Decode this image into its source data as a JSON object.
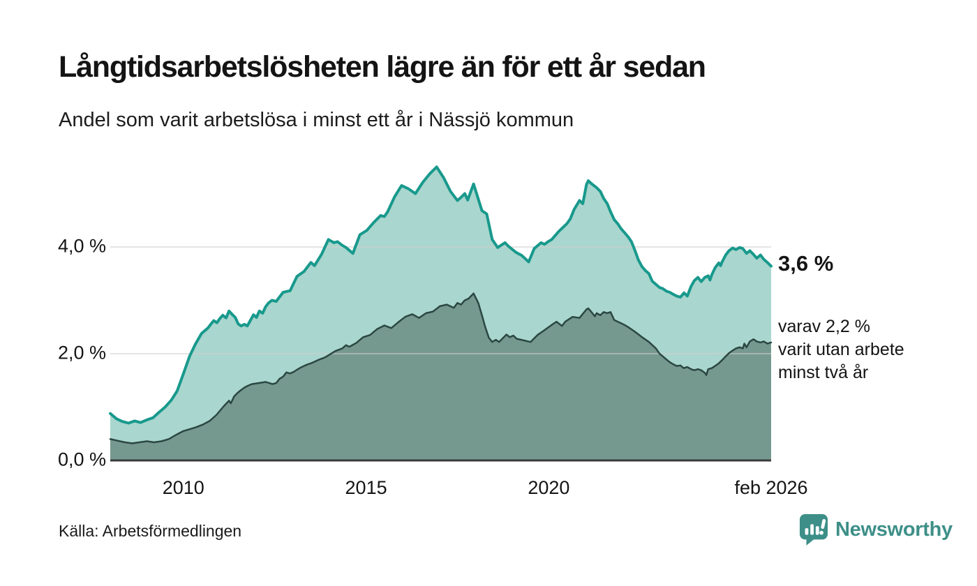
{
  "header": {
    "title": "Långtidsarbetslösheten lägre än för ett år sedan",
    "subtitle": "Andel som varit arbetslösa i minst ett år i Nässjö kommun"
  },
  "annotations": {
    "latest_total": "3,6 %",
    "latest_two_year_lines": [
      "varav 2,2 %",
      "varit utan arbete",
      "minst två år"
    ]
  },
  "footer": {
    "source": "Källa: Arbetsförmedlingen",
    "brand": "Newsworthy"
  },
  "colors": {
    "series1_line": "#18998c",
    "series1_fill": "#a9d6ce",
    "series2_line": "#2b4742",
    "series2_fill": "#76998f",
    "gridline": "#cfcfcf",
    "baseline": "#3a3a3a",
    "brand_teal": "#3d8f88"
  },
  "chart_data": {
    "type": "area",
    "title": "Långtidsarbetslösheten lägre än för ett år sedan",
    "subtitle": "Andel som varit arbetslösa i minst ett år i Nässjö kommun",
    "unit": "%",
    "grid": "horizontal",
    "x_range": [
      2008.0,
      2026.083
    ],
    "ylim": [
      0,
      5.9
    ],
    "x_ticks": [
      {
        "value": 2010,
        "label": "2010"
      },
      {
        "value": 2015,
        "label": "2015"
      },
      {
        "value": 2020,
        "label": "2020"
      },
      {
        "value": 2026.083,
        "label": "feb 2026"
      }
    ],
    "y_ticks": [
      {
        "value": 0,
        "label": "0,0 %"
      },
      {
        "value": 2,
        "label": "2,0 %"
      },
      {
        "value": 4,
        "label": "4,0 %"
      }
    ],
    "series": [
      {
        "name": "Andel arbetslösa minst ett år",
        "latest_label": "3,6 %",
        "latest_value": 3.6,
        "points": [
          [
            2008.0,
            0.88
          ],
          [
            2008.17,
            0.78
          ],
          [
            2008.33,
            0.73
          ],
          [
            2008.5,
            0.7
          ],
          [
            2008.67,
            0.74
          ],
          [
            2008.83,
            0.71
          ],
          [
            2009.0,
            0.76
          ],
          [
            2009.17,
            0.8
          ],
          [
            2009.33,
            0.9
          ],
          [
            2009.5,
            1.0
          ],
          [
            2009.67,
            1.13
          ],
          [
            2009.83,
            1.3
          ],
          [
            2010.0,
            1.62
          ],
          [
            2010.17,
            1.95
          ],
          [
            2010.33,
            2.18
          ],
          [
            2010.5,
            2.38
          ],
          [
            2010.67,
            2.48
          ],
          [
            2010.75,
            2.55
          ],
          [
            2010.83,
            2.62
          ],
          [
            2010.92,
            2.58
          ],
          [
            2011.0,
            2.66
          ],
          [
            2011.08,
            2.72
          ],
          [
            2011.17,
            2.67
          ],
          [
            2011.25,
            2.8
          ],
          [
            2011.33,
            2.74
          ],
          [
            2011.42,
            2.68
          ],
          [
            2011.5,
            2.56
          ],
          [
            2011.58,
            2.52
          ],
          [
            2011.67,
            2.55
          ],
          [
            2011.75,
            2.52
          ],
          [
            2011.83,
            2.62
          ],
          [
            2011.92,
            2.73
          ],
          [
            2012.0,
            2.68
          ],
          [
            2012.08,
            2.8
          ],
          [
            2012.17,
            2.76
          ],
          [
            2012.25,
            2.88
          ],
          [
            2012.33,
            2.95
          ],
          [
            2012.42,
            3.0
          ],
          [
            2012.54,
            2.98
          ],
          [
            2012.73,
            3.15
          ],
          [
            2012.92,
            3.18
          ],
          [
            2013.11,
            3.45
          ],
          [
            2013.3,
            3.54
          ],
          [
            2013.49,
            3.71
          ],
          [
            2013.59,
            3.65
          ],
          [
            2013.78,
            3.86
          ],
          [
            2013.97,
            4.14
          ],
          [
            2014.12,
            4.08
          ],
          [
            2014.22,
            4.1
          ],
          [
            2014.35,
            4.03
          ],
          [
            2014.45,
            3.99
          ],
          [
            2014.64,
            3.88
          ],
          [
            2014.83,
            4.23
          ],
          [
            2015.02,
            4.31
          ],
          [
            2015.21,
            4.46
          ],
          [
            2015.4,
            4.59
          ],
          [
            2015.5,
            4.57
          ],
          [
            2015.59,
            4.66
          ],
          [
            2015.78,
            4.94
          ],
          [
            2015.97,
            5.15
          ],
          [
            2016.16,
            5.09
          ],
          [
            2016.35,
            5.0
          ],
          [
            2016.55,
            5.21
          ],
          [
            2016.74,
            5.37
          ],
          [
            2016.93,
            5.5
          ],
          [
            2017.12,
            5.3
          ],
          [
            2017.31,
            5.04
          ],
          [
            2017.5,
            4.87
          ],
          [
            2017.6,
            4.93
          ],
          [
            2017.7,
            5.0
          ],
          [
            2017.78,
            4.88
          ],
          [
            2017.94,
            5.18
          ],
          [
            2018.17,
            4.68
          ],
          [
            2018.3,
            4.62
          ],
          [
            2018.45,
            4.14
          ],
          [
            2018.6,
            3.99
          ],
          [
            2018.8,
            4.08
          ],
          [
            2018.9,
            4.01
          ],
          [
            2019.1,
            3.9
          ],
          [
            2019.26,
            3.84
          ],
          [
            2019.45,
            3.72
          ],
          [
            2019.6,
            3.97
          ],
          [
            2019.79,
            4.08
          ],
          [
            2019.88,
            4.05
          ],
          [
            2019.98,
            4.1
          ],
          [
            2020.08,
            4.14
          ],
          [
            2020.27,
            4.29
          ],
          [
            2020.5,
            4.44
          ],
          [
            2020.59,
            4.53
          ],
          [
            2020.69,
            4.7
          ],
          [
            2020.84,
            4.87
          ],
          [
            2020.93,
            4.81
          ],
          [
            2021.03,
            5.17
          ],
          [
            2021.08,
            5.24
          ],
          [
            2021.16,
            5.19
          ],
          [
            2021.31,
            5.11
          ],
          [
            2021.41,
            5.04
          ],
          [
            2021.5,
            4.91
          ],
          [
            2021.6,
            4.81
          ],
          [
            2021.69,
            4.66
          ],
          [
            2021.79,
            4.51
          ],
          [
            2021.88,
            4.44
          ],
          [
            2021.98,
            4.34
          ],
          [
            2022.07,
            4.27
          ],
          [
            2022.17,
            4.19
          ],
          [
            2022.26,
            4.1
          ],
          [
            2022.36,
            3.93
          ],
          [
            2022.45,
            3.76
          ],
          [
            2022.55,
            3.63
          ],
          [
            2022.64,
            3.56
          ],
          [
            2022.74,
            3.5
          ],
          [
            2022.83,
            3.36
          ],
          [
            2022.93,
            3.3
          ],
          [
            2023.03,
            3.24
          ],
          [
            2023.12,
            3.22
          ],
          [
            2023.22,
            3.17
          ],
          [
            2023.31,
            3.15
          ],
          [
            2023.41,
            3.11
          ],
          [
            2023.5,
            3.08
          ],
          [
            2023.6,
            3.06
          ],
          [
            2023.7,
            3.14
          ],
          [
            2023.79,
            3.08
          ],
          [
            2023.89,
            3.26
          ],
          [
            2023.98,
            3.37
          ],
          [
            2024.08,
            3.43
          ],
          [
            2024.17,
            3.35
          ],
          [
            2024.27,
            3.43
          ],
          [
            2024.36,
            3.46
          ],
          [
            2024.41,
            3.38
          ],
          [
            2024.46,
            3.48
          ],
          [
            2024.55,
            3.61
          ],
          [
            2024.65,
            3.7
          ],
          [
            2024.7,
            3.65
          ],
          [
            2024.74,
            3.72
          ],
          [
            2024.84,
            3.85
          ],
          [
            2024.93,
            3.93
          ],
          [
            2025.03,
            3.98
          ],
          [
            2025.12,
            3.95
          ],
          [
            2025.22,
            3.99
          ],
          [
            2025.31,
            3.97
          ],
          [
            2025.41,
            3.88
          ],
          [
            2025.5,
            3.93
          ],
          [
            2025.6,
            3.86
          ],
          [
            2025.69,
            3.79
          ],
          [
            2025.79,
            3.85
          ],
          [
            2025.88,
            3.77
          ],
          [
            2025.98,
            3.71
          ],
          [
            2026.083,
            3.64
          ]
        ]
      },
      {
        "name": "varav utan arbete minst två år",
        "latest_label": "varav 2,2 % varit utan arbete minst två år",
        "latest_value": 2.2,
        "points": [
          [
            2008.0,
            0.4
          ],
          [
            2008.2,
            0.37
          ],
          [
            2008.4,
            0.34
          ],
          [
            2008.6,
            0.32
          ],
          [
            2008.8,
            0.34
          ],
          [
            2009.0,
            0.36
          ],
          [
            2009.2,
            0.34
          ],
          [
            2009.4,
            0.36
          ],
          [
            2009.6,
            0.4
          ],
          [
            2009.8,
            0.48
          ],
          [
            2010.0,
            0.55
          ],
          [
            2010.15,
            0.58
          ],
          [
            2010.34,
            0.62
          ],
          [
            2010.53,
            0.67
          ],
          [
            2010.72,
            0.74
          ],
          [
            2010.9,
            0.85
          ],
          [
            2011.11,
            1.02
          ],
          [
            2011.25,
            1.12
          ],
          [
            2011.3,
            1.07
          ],
          [
            2011.39,
            1.2
          ],
          [
            2011.49,
            1.27
          ],
          [
            2011.58,
            1.32
          ],
          [
            2011.68,
            1.37
          ],
          [
            2011.77,
            1.4
          ],
          [
            2011.87,
            1.43
          ],
          [
            2012.06,
            1.45
          ],
          [
            2012.25,
            1.47
          ],
          [
            2012.35,
            1.45
          ],
          [
            2012.44,
            1.43
          ],
          [
            2012.54,
            1.45
          ],
          [
            2012.63,
            1.53
          ],
          [
            2012.73,
            1.57
          ],
          [
            2012.82,
            1.65
          ],
          [
            2012.92,
            1.63
          ],
          [
            2013.02,
            1.66
          ],
          [
            2013.11,
            1.7
          ],
          [
            2013.21,
            1.74
          ],
          [
            2013.3,
            1.77
          ],
          [
            2013.4,
            1.8
          ],
          [
            2013.49,
            1.82
          ],
          [
            2013.59,
            1.85
          ],
          [
            2013.68,
            1.88
          ],
          [
            2013.87,
            1.93
          ],
          [
            2013.97,
            1.97
          ],
          [
            2014.16,
            2.05
          ],
          [
            2014.35,
            2.1
          ],
          [
            2014.45,
            2.16
          ],
          [
            2014.54,
            2.13
          ],
          [
            2014.73,
            2.2
          ],
          [
            2014.92,
            2.31
          ],
          [
            2015.11,
            2.35
          ],
          [
            2015.3,
            2.46
          ],
          [
            2015.5,
            2.53
          ],
          [
            2015.69,
            2.48
          ],
          [
            2015.88,
            2.59
          ],
          [
            2016.07,
            2.69
          ],
          [
            2016.26,
            2.74
          ],
          [
            2016.45,
            2.67
          ],
          [
            2016.64,
            2.76
          ],
          [
            2016.83,
            2.79
          ],
          [
            2017.02,
            2.89
          ],
          [
            2017.21,
            2.92
          ],
          [
            2017.4,
            2.86
          ],
          [
            2017.5,
            2.95
          ],
          [
            2017.6,
            2.92
          ],
          [
            2017.7,
            3.0
          ],
          [
            2017.8,
            3.03
          ],
          [
            2017.94,
            3.13
          ],
          [
            2018.07,
            2.95
          ],
          [
            2018.17,
            2.72
          ],
          [
            2018.26,
            2.5
          ],
          [
            2018.36,
            2.3
          ],
          [
            2018.45,
            2.22
          ],
          [
            2018.55,
            2.26
          ],
          [
            2018.64,
            2.22
          ],
          [
            2018.84,
            2.36
          ],
          [
            2018.93,
            2.31
          ],
          [
            2019.03,
            2.34
          ],
          [
            2019.12,
            2.28
          ],
          [
            2019.31,
            2.25
          ],
          [
            2019.5,
            2.22
          ],
          [
            2019.69,
            2.35
          ],
          [
            2019.88,
            2.44
          ],
          [
            2020.08,
            2.54
          ],
          [
            2020.21,
            2.6
          ],
          [
            2020.36,
            2.52
          ],
          [
            2020.45,
            2.6
          ],
          [
            2020.65,
            2.69
          ],
          [
            2020.84,
            2.67
          ],
          [
            2021.03,
            2.83
          ],
          [
            2021.08,
            2.85
          ],
          [
            2021.18,
            2.77
          ],
          [
            2021.26,
            2.7
          ],
          [
            2021.31,
            2.76
          ],
          [
            2021.41,
            2.72
          ],
          [
            2021.5,
            2.78
          ],
          [
            2021.6,
            2.76
          ],
          [
            2021.69,
            2.78
          ],
          [
            2021.79,
            2.63
          ],
          [
            2021.98,
            2.57
          ],
          [
            2022.07,
            2.54
          ],
          [
            2022.17,
            2.5
          ],
          [
            2022.36,
            2.41
          ],
          [
            2022.55,
            2.31
          ],
          [
            2022.74,
            2.22
          ],
          [
            2022.93,
            2.1
          ],
          [
            2023.03,
            2.0
          ],
          [
            2023.12,
            1.95
          ],
          [
            2023.22,
            1.89
          ],
          [
            2023.31,
            1.84
          ],
          [
            2023.41,
            1.8
          ],
          [
            2023.5,
            1.77
          ],
          [
            2023.6,
            1.78
          ],
          [
            2023.69,
            1.73
          ],
          [
            2023.79,
            1.75
          ],
          [
            2023.89,
            1.71
          ],
          [
            2023.98,
            1.69
          ],
          [
            2024.08,
            1.71
          ],
          [
            2024.17,
            1.69
          ],
          [
            2024.27,
            1.64
          ],
          [
            2024.31,
            1.6
          ],
          [
            2024.36,
            1.71
          ],
          [
            2024.46,
            1.73
          ],
          [
            2024.55,
            1.77
          ],
          [
            2024.65,
            1.82
          ],
          [
            2024.74,
            1.88
          ],
          [
            2024.84,
            1.95
          ],
          [
            2024.93,
            2.01
          ],
          [
            2025.03,
            2.06
          ],
          [
            2025.12,
            2.1
          ],
          [
            2025.22,
            2.12
          ],
          [
            2025.31,
            2.1
          ],
          [
            2025.35,
            2.19
          ],
          [
            2025.41,
            2.12
          ],
          [
            2025.5,
            2.23
          ],
          [
            2025.6,
            2.27
          ],
          [
            2025.69,
            2.23
          ],
          [
            2025.79,
            2.21
          ],
          [
            2025.88,
            2.23
          ],
          [
            2025.98,
            2.19
          ],
          [
            2026.083,
            2.21
          ]
        ]
      }
    ]
  }
}
